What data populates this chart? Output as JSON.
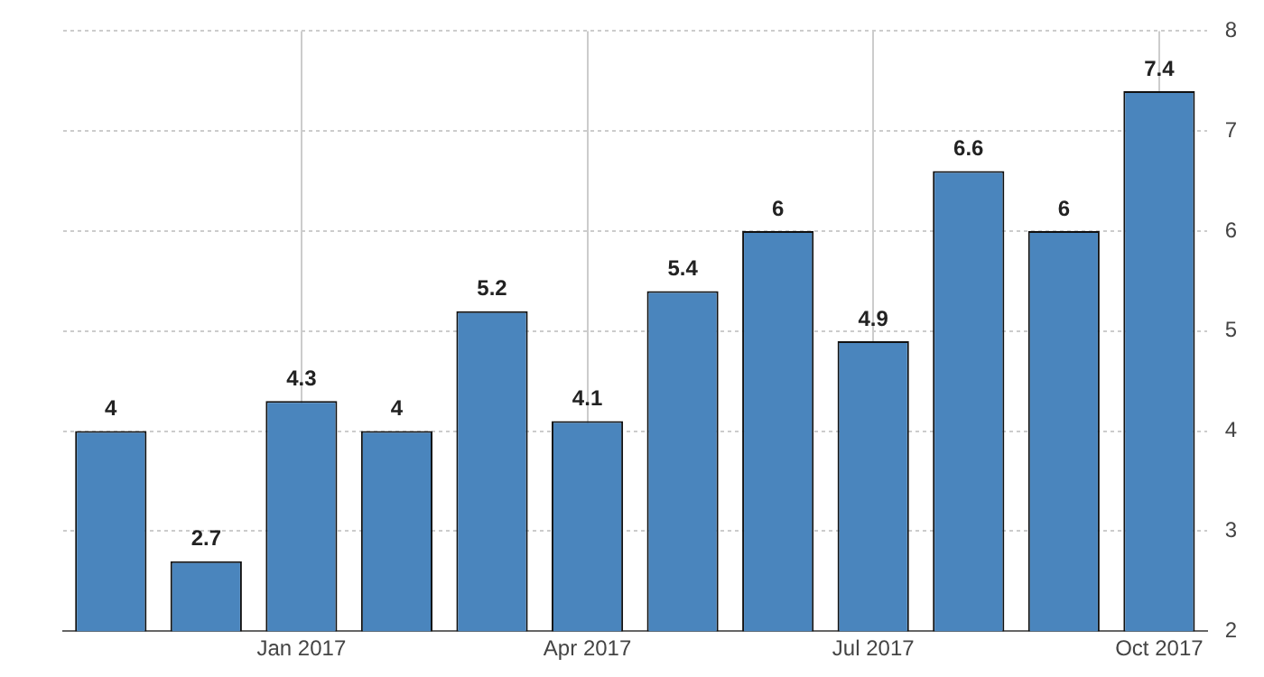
{
  "chart_data": {
    "type": "bar",
    "categories": [
      null,
      null,
      "Jan 2017",
      null,
      null,
      "Apr 2017",
      null,
      null,
      "Jul 2017",
      null,
      null,
      "Oct 2017"
    ],
    "values": [
      4,
      2.7,
      4.3,
      4,
      5.2,
      4.1,
      5.4,
      6,
      4.9,
      6.6,
      6,
      7.4
    ],
    "color": "#4a85bd",
    "ylim": [
      2,
      8
    ],
    "yticks": [
      2,
      3,
      4,
      5,
      6,
      7,
      8
    ],
    "grid": true,
    "data_labels": true,
    "legend": false
  }
}
